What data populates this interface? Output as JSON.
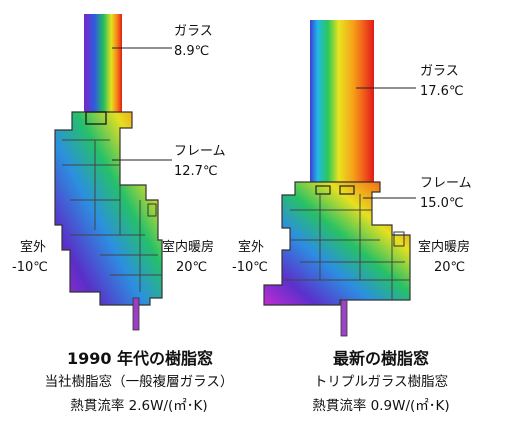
{
  "left_panel": {
    "glass_label": "ガラス",
    "glass_temp": "8.9℃",
    "frame_label": "フレーム",
    "frame_temp": "12.7℃",
    "outdoor_label": "室外",
    "outdoor_temp": "-10℃",
    "indoor_label": "室内暖房",
    "indoor_temp": "20℃",
    "title": "1990 年代の樹脂窓",
    "subtitle": "当社樹脂窓（一般複層ガラス）",
    "heat_flow": "熱貫流率 2.6W/(㎡･K)"
  },
  "right_panel": {
    "glass_label": "ガラス",
    "glass_temp": "17.6℃",
    "frame_label": "フレーム",
    "frame_temp": "15.0℃",
    "outdoor_label": "室外",
    "outdoor_temp": "-10℃",
    "indoor_label": "室内暖房",
    "indoor_temp": "20℃",
    "title": "最新の樹脂窓",
    "subtitle": "トリプルガラス樹脂窓",
    "heat_flow": "熱貫流率 0.9W/(㎡･K)"
  },
  "colors": {
    "cold": "#6a1fb0",
    "mid": "#2fa5e0",
    "warm": "#e21d1d"
  }
}
